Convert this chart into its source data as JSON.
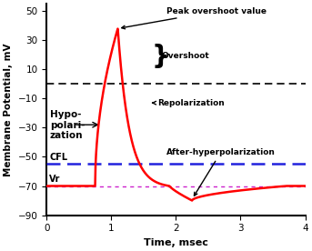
{
  "xlabel": "Time, msec",
  "ylabel": "Membrane Potential, mV",
  "xlim": [
    0,
    4
  ],
  "ylim": [
    -90,
    55
  ],
  "yticks": [
    -90,
    -70,
    -50,
    -30,
    -10,
    10,
    30,
    50
  ],
  "xticks": [
    0,
    1,
    2,
    3,
    4
  ],
  "Vr": -70,
  "CFL": -55,
  "zero_line": 0,
  "peak": 38,
  "trough": -80,
  "action_potential_color": "#FF0000",
  "zero_line_color": "#000000",
  "CFL_color": "#2222DD",
  "Vr_color": "#CC22CC",
  "background_color": "#FFFFFF",
  "annotations": {
    "peak_overshoot_value": "Peak overshoot value",
    "overshoot": "Overshoot",
    "repolarization": "Repolarization",
    "hypopolarization": "Hypo-\npolari-\nzation",
    "after_hyperpolarization": "After-hyperpolarization",
    "CFL_label": "CFL",
    "Vr_label": "Vr"
  }
}
